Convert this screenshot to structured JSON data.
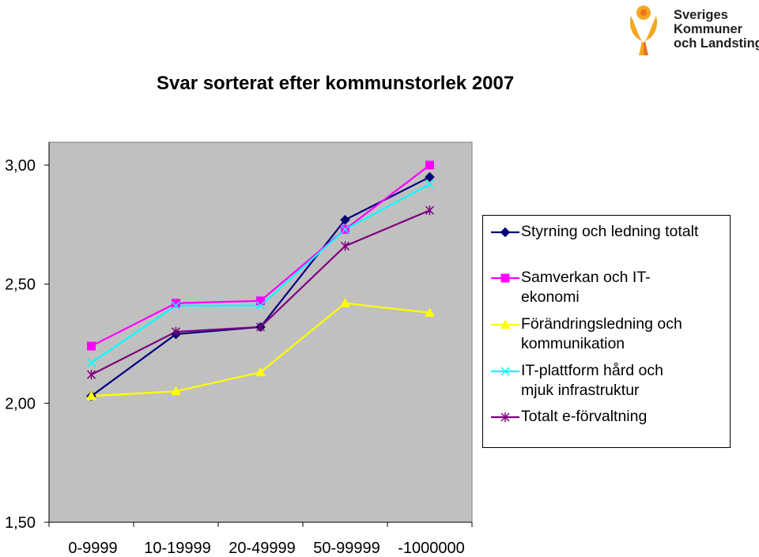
{
  "title": "Svar sorterat efter kommunstorlek 2007",
  "logo": {
    "text_lines": [
      "Sveriges",
      "Kommuner",
      "och Landsting"
    ],
    "brand_color": "#f5a623",
    "accent_color": "#e8741e"
  },
  "chart_data": {
    "type": "line",
    "categories": [
      "0-9999",
      "10-19999",
      "20-49999",
      "50-99999",
      "-1000000"
    ],
    "ylim": [
      1.5,
      3.0
    ],
    "yticks": [
      "3,00",
      "2,50",
      "2,00",
      "1,50"
    ],
    "ytick_values": [
      3.0,
      2.5,
      2.0,
      1.5
    ],
    "grid": false,
    "plot_background": "#c0c0c0",
    "legend_position": "right",
    "series": [
      {
        "name": "Styrning och ledning totalt",
        "color": "#000080",
        "marker": "diamond",
        "values": [
          2.03,
          2.29,
          2.32,
          2.77,
          2.95
        ]
      },
      {
        "name": "Samverkan och IT-\nekonomi",
        "color": "#ff00ff",
        "marker": "square",
        "values": [
          2.24,
          2.42,
          2.43,
          2.73,
          3.0
        ]
      },
      {
        "name": "Förändringsledning och\nkommunikation",
        "color": "#ffff00",
        "marker": "triangle",
        "values": [
          2.03,
          2.05,
          2.13,
          2.42,
          2.38
        ]
      },
      {
        "name": "IT-plattform hård och\nmjuk infrastruktur",
        "color": "#00ffff",
        "marker": "x",
        "values": [
          2.17,
          2.41,
          2.41,
          2.73,
          2.92
        ]
      },
      {
        "name": "Totalt e-förvaltning",
        "color": "#800080",
        "marker": "star",
        "values": [
          2.12,
          2.3,
          2.32,
          2.66,
          2.81
        ]
      }
    ]
  }
}
